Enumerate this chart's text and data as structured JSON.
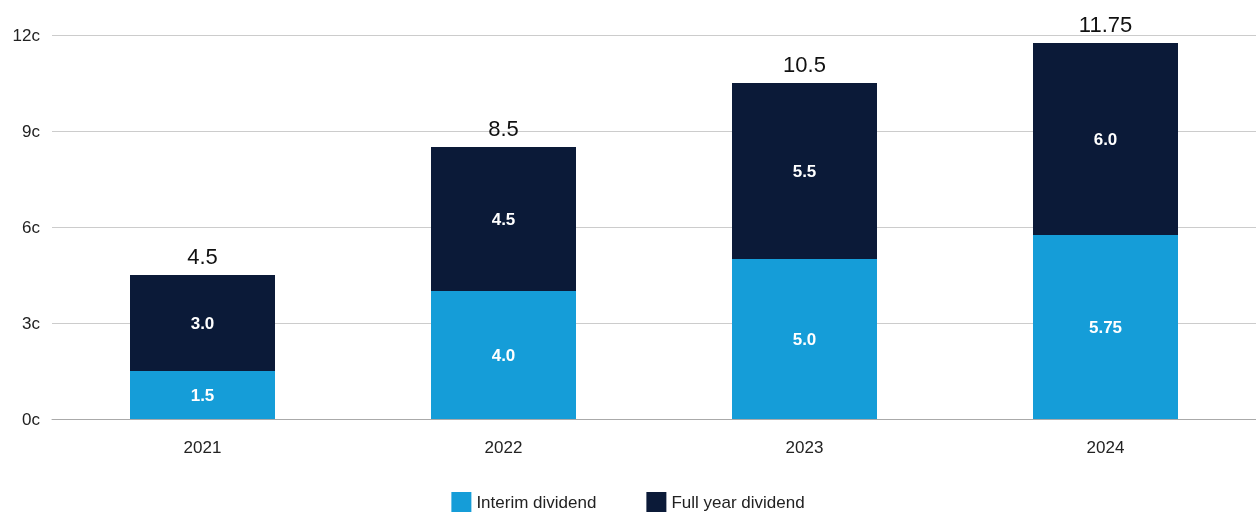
{
  "chart_data": {
    "type": "bar",
    "stacked": true,
    "categories": [
      "2021",
      "2022",
      "2023",
      "2024"
    ],
    "series": [
      {
        "name": "Interim dividend",
        "color": "#159dd8",
        "values": [
          1.5,
          4.0,
          5.0,
          5.75
        ],
        "value_labels": [
          "1.5",
          "4.0",
          "5.0",
          "5.75"
        ]
      },
      {
        "name": "Full year dividend",
        "color": "#0b1a38",
        "values": [
          3.0,
          4.5,
          5.5,
          6.0
        ],
        "value_labels": [
          "3.0",
          "4.5",
          "5.5",
          "6.0"
        ]
      }
    ],
    "totals": [
      "4.5",
      "8.5",
      "10.5",
      "11.75"
    ],
    "ylim": [
      0,
      12
    ],
    "yticks": [
      {
        "value": 0,
        "label": "0c"
      },
      {
        "value": 3,
        "label": "3c"
      },
      {
        "value": 6,
        "label": "6c"
      },
      {
        "value": 9,
        "label": "9c"
      },
      {
        "value": 12,
        "label": "12c"
      }
    ],
    "grid": "y",
    "legend": "bottom"
  }
}
